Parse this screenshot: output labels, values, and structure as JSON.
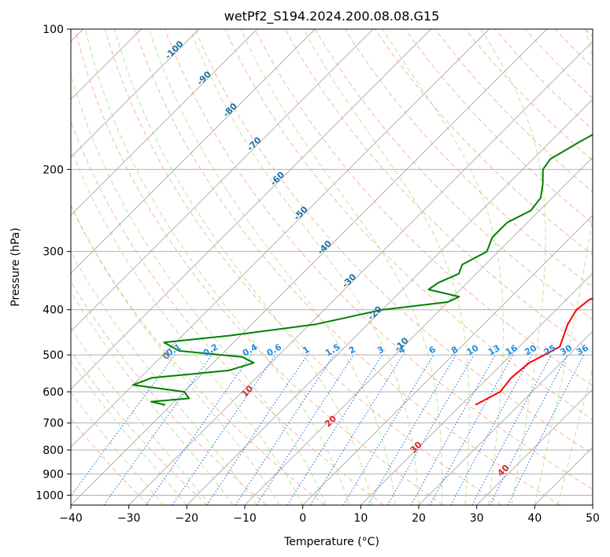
{
  "chart_data": {
    "type": "skew-t",
    "title": "wetPf2_S194.2024.200.08.08.G15",
    "xlabel": "Temperature (°C)",
    "ylabel": "Pressure (hPa)",
    "xlim": [
      -40,
      50
    ],
    "ylim": [
      1050,
      100
    ],
    "y_log_scale": true,
    "grid": true,
    "x_ticks": [
      -40,
      -30,
      -20,
      -10,
      0,
      10,
      20,
      30,
      40,
      50
    ],
    "y_ticks": [
      100,
      200,
      300,
      400,
      500,
      600,
      700,
      800,
      900,
      1000
    ],
    "colors": {
      "temperature": "#ff0000",
      "dewpoint": "#008000",
      "isotherm": "#aaaaaa",
      "dry_adiabat": "#f4a582",
      "moist_adiabat": "#a6d96a",
      "mixing_ratio": "#1f77e0",
      "isotherm_label": "#1f6fa8",
      "dry_adiabat_label": "#d62728",
      "mixing_label": "#1f8fe0"
    },
    "series": [
      {
        "name": "",
        "kind": "temperature",
        "pressure": [
          100,
          110,
          118,
          125,
          135,
          145,
          160,
          180,
          200,
          230,
          260,
          300,
          320,
          340,
          360,
          380,
          400,
          430,
          480,
          520,
          560,
          600,
          640
        ],
        "temperature": [
          2.5,
          4.5,
          6.5,
          4.8,
          1.4,
          -0.2,
          1.0,
          4.2,
          7.0,
          9.5,
          11.0,
          16.5,
          19.0,
          20.0,
          19.5,
          14.0,
          13.5,
          14.5,
          17.0,
          14.5,
          14.0,
          14.5,
          12.5
        ]
      },
      {
        "name": "",
        "kind": "dewpoint",
        "pressure": [
          100,
          110,
          118,
          125,
          135,
          145,
          160,
          175,
          190,
          200,
          215,
          230,
          245,
          260,
          280,
          300,
          320,
          335,
          350,
          362,
          375,
          385,
          400,
          430,
          455,
          470,
          490,
          505,
          520,
          540,
          560,
          580,
          600,
          620,
          630,
          640
        ],
        "dewpoint": [
          -5.0,
          -6.5,
          -9.5,
          -10.5,
          -9.5,
          -10.0,
          -12.5,
          -15.0,
          -17.0,
          -16.5,
          -14.0,
          -12.0,
          -11.5,
          -13.5,
          -13.5,
          -12.0,
          -14.0,
          -13.0,
          -15.0,
          -15.5,
          -9.0,
          -10.0,
          -20.0,
          -29.0,
          -42.0,
          -52.0,
          -48.0,
          -36.0,
          -33.0,
          -36.0,
          -48.0,
          -50.0,
          -40.0,
          -38.0,
          -44.0,
          -41.0
        ]
      }
    ],
    "isotherm_labels": [
      "-100",
      "-90",
      "-80",
      "-70",
      "-60",
      "-50",
      "-40",
      "-30",
      "-20",
      "-10"
    ],
    "dry_adiabat_labels": [
      "0",
      "10",
      "20",
      "30",
      "40"
    ],
    "mixing_ratio_labels": [
      "0.1",
      "0.2",
      "0.4",
      "0.6",
      "1",
      "1.5",
      "2",
      "3",
      "4",
      "6",
      "8",
      "10",
      "13",
      "16",
      "20",
      "25",
      "30",
      "36"
    ]
  }
}
